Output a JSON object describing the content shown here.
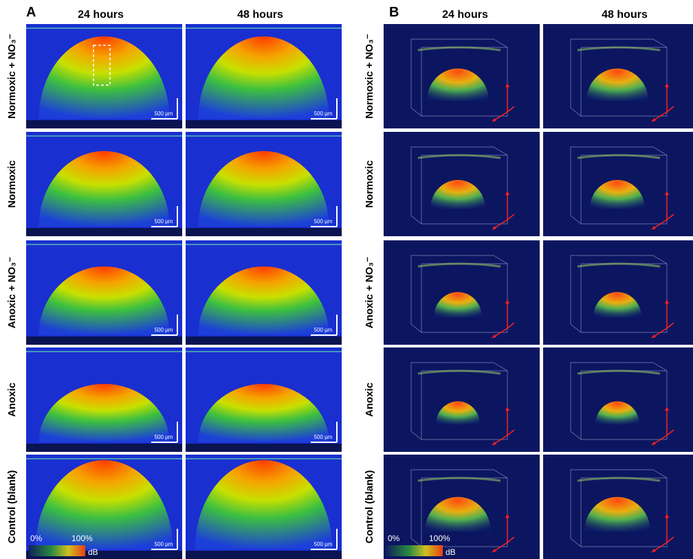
{
  "panels": [
    {
      "label": "A",
      "columns": [
        "24 hours",
        "48 hours"
      ],
      "rows": [
        "Normoxic + NO₃⁻",
        "Normoxic",
        "Anoxic + NO₃⁻",
        "Anoxic",
        "Control (blank)"
      ],
      "scale_bar": "500 µm",
      "colorbar": {
        "min": "0%",
        "max": "100%",
        "unit": "dB"
      }
    },
    {
      "label": "B",
      "columns": [
        "24 hours",
        "48 hours"
      ],
      "rows": [
        "Normoxic + NO₃⁻",
        "Normoxic",
        "Anoxic + NO₃⁻",
        "Anoxic",
        "Control (blank)"
      ],
      "colorbar": {
        "min": "0%",
        "max": "100%",
        "unit": "dB"
      }
    }
  ]
}
